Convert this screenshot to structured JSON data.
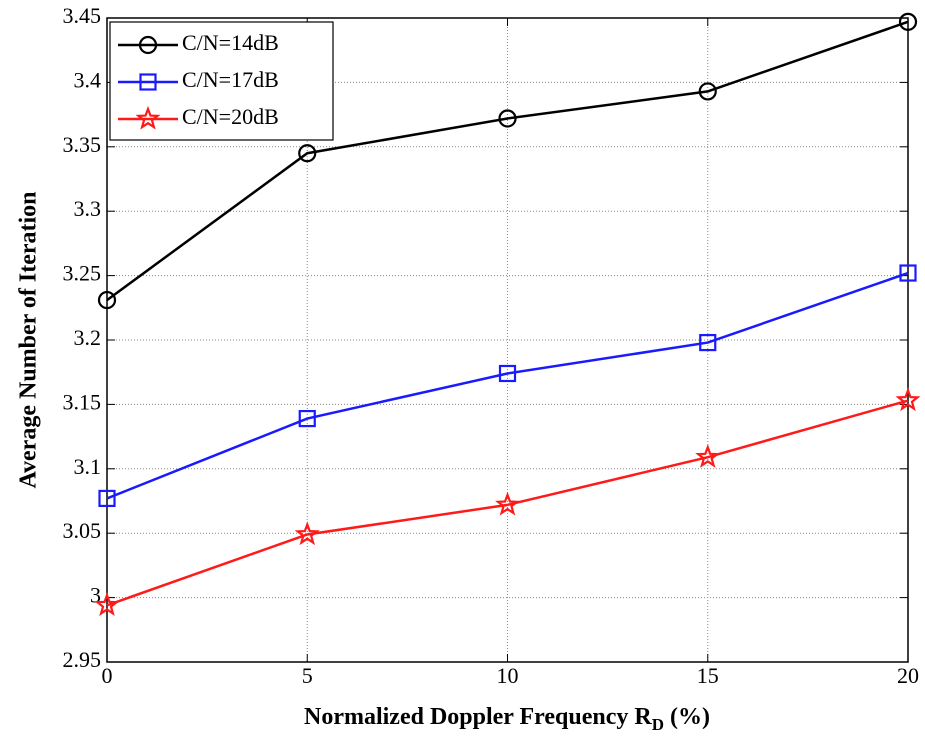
{
  "chart_data": {
    "type": "line",
    "xlabel": {
      "text": "Normalized Doppler Frequency R",
      "subscript": "D",
      "suffix": " (%)"
    },
    "ylabel": "Average Number of Iteration",
    "x": [
      0,
      5,
      10,
      15,
      20
    ],
    "series": [
      {
        "name": "C/N=14dB",
        "color": "#000000",
        "marker": "circle",
        "values": [
          3.231,
          3.345,
          3.372,
          3.393,
          3.447
        ]
      },
      {
        "name": "C/N=17dB",
        "color": "#1a1aff",
        "marker": "square",
        "values": [
          3.077,
          3.139,
          3.174,
          3.198,
          3.252
        ]
      },
      {
        "name": "C/N=20dB",
        "color": "#ff1a1a",
        "marker": "star",
        "values": [
          2.994,
          3.049,
          3.072,
          3.109,
          3.153
        ]
      }
    ],
    "xlim": [
      0,
      20
    ],
    "xticks": [
      0,
      5,
      10,
      15,
      20
    ],
    "ylim": [
      2.95,
      3.45
    ],
    "yticks": [
      2.95,
      3,
      3.05,
      3.1,
      3.15,
      3.2,
      3.25,
      3.3,
      3.35,
      3.4,
      3.45
    ],
    "grid": true,
    "legend": "upper-left"
  }
}
